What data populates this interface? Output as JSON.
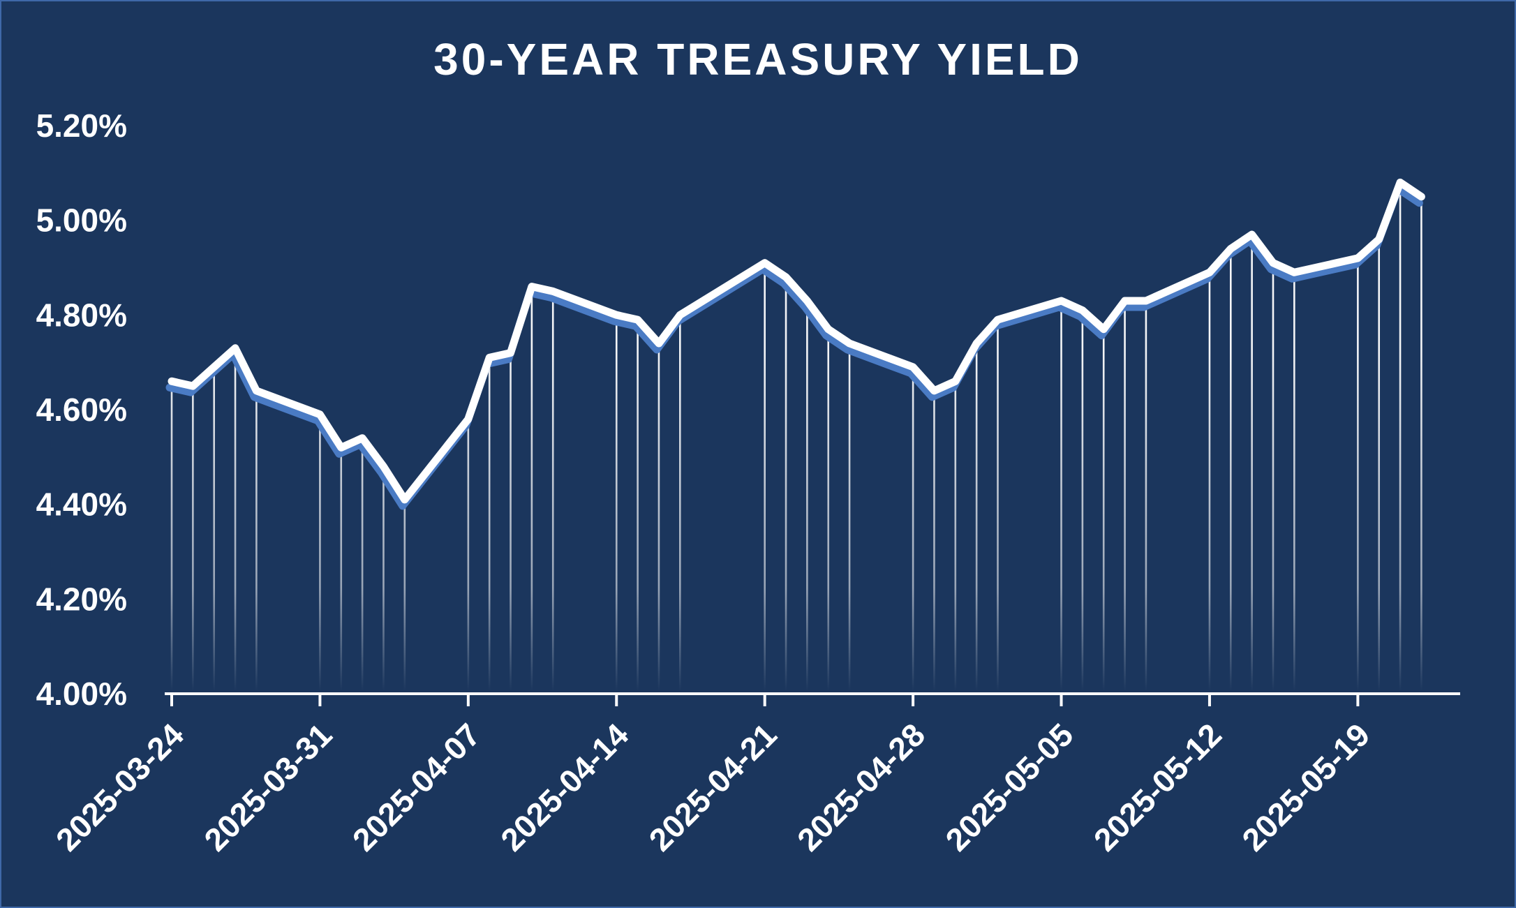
{
  "chart_data": {
    "type": "line",
    "title": "30-YEAR TREASURY YIELD",
    "xlabel": "",
    "ylabel": "",
    "ylim": [
      4.0,
      5.2
    ],
    "xlim": [
      "2025-03-24",
      "2025-05-23"
    ],
    "y_ticks": [
      "5.20%",
      "5.00%",
      "4.80%",
      "4.60%",
      "4.40%",
      "4.20%",
      "4.00%"
    ],
    "y_tick_values": [
      5.2,
      5.0,
      4.8,
      4.6,
      4.4,
      4.2,
      4.0
    ],
    "x_ticks": [
      "2025-03-24",
      "2025-03-31",
      "2025-04-07",
      "2025-04-14",
      "2025-04-21",
      "2025-04-28",
      "2025-05-05",
      "2025-05-12",
      "2025-05-19"
    ],
    "grid": false,
    "legend": "none",
    "colors": {
      "background": "#1b365d",
      "line": "#ffffff",
      "shadow": "#4a7bc4",
      "drop_lines": "#ffffff",
      "border": "#3f68a8"
    },
    "series": [
      {
        "x": [
          "2025-03-24",
          "2025-03-25",
          "2025-03-26",
          "2025-03-27",
          "2025-03-28",
          "2025-03-31",
          "2025-04-01",
          "2025-04-02",
          "2025-04-03",
          "2025-04-04",
          "2025-04-07",
          "2025-04-08",
          "2025-04-09",
          "2025-04-10",
          "2025-04-11",
          "2025-04-14",
          "2025-04-15",
          "2025-04-16",
          "2025-04-17",
          "2025-04-21",
          "2025-04-22",
          "2025-04-23",
          "2025-04-24",
          "2025-04-25",
          "2025-04-28",
          "2025-04-29",
          "2025-04-30",
          "2025-05-01",
          "2025-05-02",
          "2025-05-05",
          "2025-05-06",
          "2025-05-07",
          "2025-05-08",
          "2025-05-09",
          "2025-05-12",
          "2025-05-13",
          "2025-05-14",
          "2025-05-15",
          "2025-05-16",
          "2025-05-19",
          "2025-05-20",
          "2025-05-21",
          "2025-05-22"
        ],
        "values": [
          4.66,
          4.65,
          4.69,
          4.73,
          4.64,
          4.59,
          4.52,
          4.54,
          4.48,
          4.41,
          4.58,
          4.71,
          4.72,
          4.86,
          4.85,
          4.8,
          4.79,
          4.74,
          4.8,
          4.91,
          4.88,
          4.83,
          4.77,
          4.74,
          4.69,
          4.64,
          4.66,
          4.74,
          4.79,
          4.83,
          4.81,
          4.77,
          4.83,
          4.83,
          4.89,
          4.94,
          4.97,
          4.91,
          4.89,
          4.92,
          4.96,
          5.08,
          5.05
        ]
      }
    ]
  }
}
